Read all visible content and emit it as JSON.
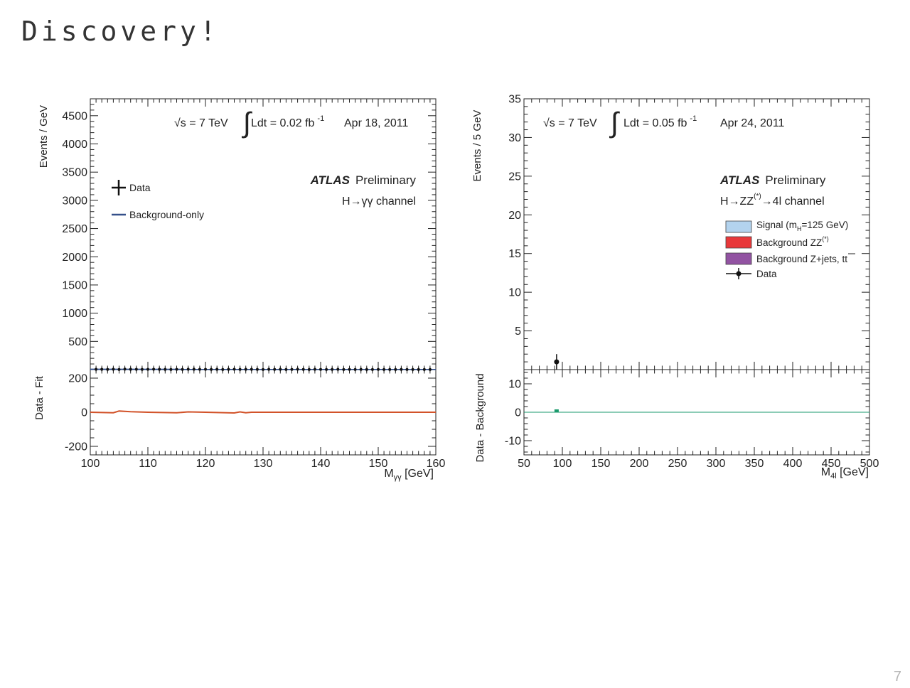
{
  "slide": {
    "title": "Discovery!",
    "page_number": "7"
  },
  "chart_data": [
    {
      "type": "line",
      "panel": "left",
      "energy_label": "√s = 7 TeV",
      "lumi_label": "Ldt = 0.02 fb",
      "lumi_sup": "-1",
      "date": "Apr 18, 2011",
      "experiment": "ATLAS",
      "experiment_status": "Preliminary",
      "channel": "H→γγ channel",
      "legend": [
        "Data",
        "Background-only"
      ],
      "xlabel": "M",
      "xlabel_sub": "γγ",
      "xlabel_unit": "[GeV]",
      "ylabel": "Events / GeV",
      "ratio_ylabel": "Data - Fit",
      "xlim": [
        100,
        160
      ],
      "ylim": [
        0,
        4800
      ],
      "ratio_ylim": [
        -250,
        250
      ],
      "xticks": [
        100,
        110,
        120,
        130,
        140,
        150,
        160
      ],
      "yticks": [
        500,
        1000,
        1500,
        2000,
        2500,
        3000,
        3500,
        4000,
        4500
      ],
      "ratio_yticks": [
        -200,
        0,
        200
      ],
      "series": [
        {
          "name": "Data",
          "x": [
            101,
            102,
            103,
            104,
            105,
            106,
            107,
            108,
            109,
            110,
            111,
            112,
            113,
            114,
            115,
            116,
            117,
            118,
            119,
            120,
            121,
            122,
            123,
            124,
            125,
            126,
            127,
            128,
            129,
            130,
            131,
            132,
            133,
            134,
            135,
            136,
            137,
            138,
            139,
            140,
            141,
            142,
            143,
            144,
            145,
            146,
            147,
            148,
            149,
            150,
            151,
            152,
            153,
            154,
            155,
            156,
            157,
            158,
            159
          ],
          "values": [
            4,
            5,
            3,
            6,
            2,
            8,
            5,
            4,
            3,
            5,
            6,
            4,
            3,
            2,
            5,
            3,
            7,
            6,
            4,
            5,
            3,
            4,
            2,
            5,
            6,
            3,
            4,
            5,
            3,
            2,
            4,
            3,
            5,
            2,
            3,
            6,
            3,
            2,
            4,
            3,
            2,
            3,
            4,
            2,
            3,
            2,
            3,
            1,
            2,
            3,
            2,
            1,
            2,
            3,
            2,
            1,
            2,
            1,
            2
          ]
        },
        {
          "name": "Background-only",
          "x": [
            100,
            160
          ],
          "values": [
            4,
            3
          ]
        }
      ],
      "residuals": {
        "x": [
          100,
          104,
          105,
          107,
          110,
          115,
          117,
          120,
          125,
          126,
          127,
          128,
          130,
          140,
          150,
          160
        ],
        "values": [
          0,
          -3,
          7,
          3,
          0,
          -3,
          2,
          0,
          -4,
          2,
          -3,
          0,
          0,
          0,
          0,
          0
        ]
      },
      "colors": {
        "data": "#111111",
        "background": "#35508a",
        "residual": "#d2532a"
      }
    },
    {
      "type": "bar",
      "panel": "right",
      "energy_label": "√s = 7 TeV",
      "lumi_label": "Ldt = 0.05 fb",
      "lumi_sup": "-1",
      "date": "Apr 24, 2011",
      "experiment": "ATLAS",
      "experiment_status": "Preliminary",
      "channel_prefix": "H→ZZ",
      "channel_sup": "(*)",
      "channel_suffix": "→4l channel",
      "legend": [
        {
          "pre": "Signal (m",
          "sub": "H",
          "post": "=125 GeV)",
          "color": "#b3d3ee"
        },
        {
          "pre": "Background ZZ",
          "sup": "(*)",
          "post": "",
          "color": "#e8383a"
        },
        {
          "pre": "Background Z+jets, tt",
          "post": "",
          "color": "#9253a2"
        },
        {
          "pre": "Data",
          "post": "",
          "color": "#111111"
        }
      ],
      "xlabel": "M",
      "xlabel_sub": "4l",
      "xlabel_unit": "[GeV]",
      "ylabel": "Events / 5 GeV",
      "ratio_ylabel": "Data - Background",
      "xlim": [
        50,
        500
      ],
      "ylim": [
        0,
        35
      ],
      "ratio_ylim": [
        -15,
        15
      ],
      "xticks": [
        50,
        100,
        150,
        200,
        250,
        300,
        350,
        400,
        450,
        500
      ],
      "yticks": [
        5,
        10,
        15,
        20,
        25,
        30,
        35
      ],
      "ratio_yticks": [
        -10,
        0,
        10
      ],
      "data_points": [
        {
          "x": 92.5,
          "y": 1,
          "err": 1
        }
      ],
      "residuals": [
        {
          "x": 92.5,
          "y": 1
        }
      ],
      "colors": {
        "data": "#111111",
        "residual": "#1a9a6c",
        "zero_line": "#1a9a6c"
      }
    }
  ]
}
